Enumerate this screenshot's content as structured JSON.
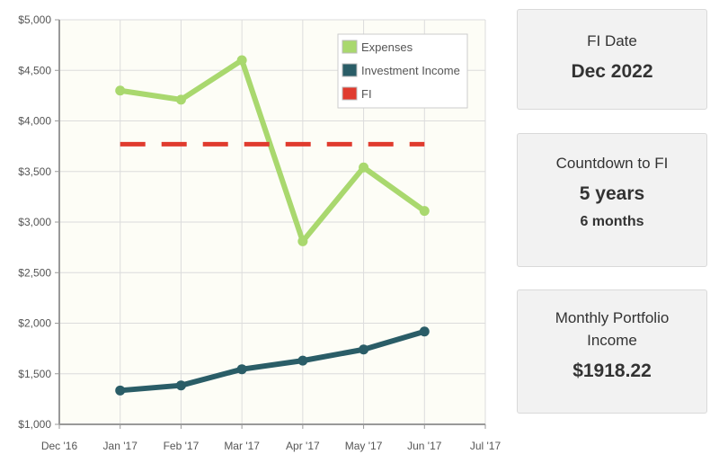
{
  "chart_data": {
    "type": "line",
    "categories": [
      "Dec '16",
      "Jan '17",
      "Feb '17",
      "Mar '17",
      "Apr '17",
      "May '17",
      "Jun '17",
      "Jul '17"
    ],
    "series": [
      {
        "name": "Expenses",
        "color": "#a9d86e",
        "style": "solid",
        "x": [
          "Jan '17",
          "Feb '17",
          "Mar '17",
          "Apr '17",
          "May '17",
          "Jun '17"
        ],
        "values": [
          4300,
          4210,
          4600,
          2810,
          3540,
          3110
        ]
      },
      {
        "name": "Investment Income",
        "color": "#2a5d67",
        "style": "solid",
        "x": [
          "Jan '17",
          "Feb '17",
          "Mar '17",
          "Apr '17",
          "May '17",
          "Jun '17"
        ],
        "values": [
          1335,
          1385,
          1545,
          1630,
          1740,
          1918
        ]
      },
      {
        "name": "FI",
        "color": "#e03b2e",
        "style": "dashed",
        "x": [
          "Jan '17",
          "Jun '17"
        ],
        "values": [
          3770,
          3770
        ]
      }
    ],
    "y_ticks": [
      "$1,000",
      "$1,500",
      "$2,000",
      "$2,500",
      "$3,000",
      "$3,500",
      "$4,000",
      "$4,500",
      "$5,000"
    ],
    "ylim": [
      1000,
      5000
    ],
    "grid": true,
    "legend_position": "top-right"
  },
  "cards": {
    "fi_date": {
      "label": "FI Date",
      "value": "Dec 2022"
    },
    "countdown": {
      "label": "Countdown to FI",
      "value": "5 years",
      "sub": "6 months"
    },
    "portfolio": {
      "label": "Monthly Portfolio Income",
      "value": "$1918.22"
    }
  }
}
